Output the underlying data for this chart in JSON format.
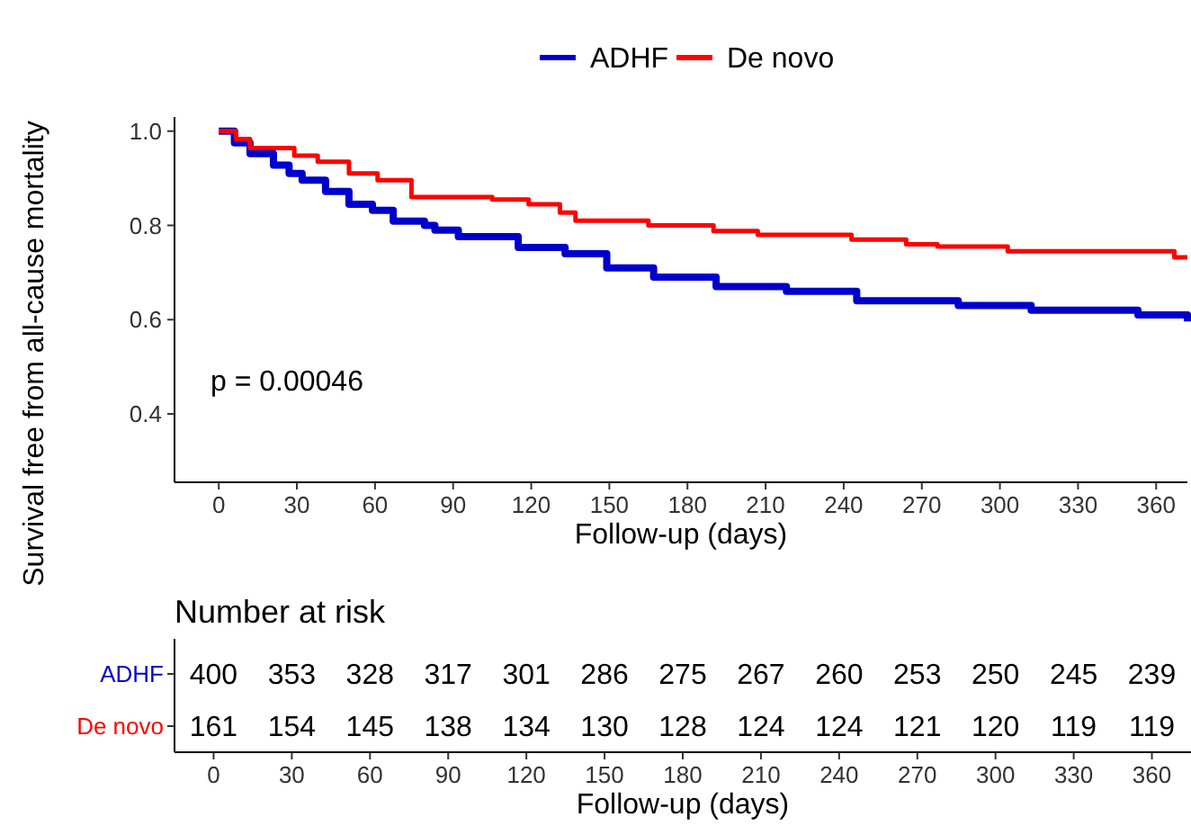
{
  "chart_data": [
    {
      "type": "step",
      "xlabel": "Follow-up (days)",
      "ylabel": "Survival free from all-cause mortality",
      "legend": "top",
      "annotations": [
        "p = 0.00046"
      ],
      "xlim": [
        -17,
        372
      ],
      "ylim": [
        0.255,
        1.03
      ],
      "xticks": [
        0,
        30,
        60,
        90,
        120,
        150,
        180,
        210,
        240,
        270,
        300,
        330,
        360
      ],
      "yticks": [
        0.4,
        0.6,
        0.8,
        {
          "value": 1,
          "label": "1.0"
        }
      ],
      "grid": false,
      "series": [
        {
          "name": "ADHF",
          "color": "#0000cc",
          "x": [
            0,
            6,
            12,
            21,
            27,
            32,
            41,
            50,
            59,
            67,
            79,
            83,
            92,
            115,
            133,
            149,
            167,
            191,
            218,
            245,
            284,
            312,
            353,
            372
          ],
          "values": [
            1,
            0.975,
            0.952,
            0.928,
            0.91,
            0.896,
            0.872,
            0.845,
            0.832,
            0.809,
            0.8,
            0.79,
            0.776,
            0.753,
            0.74,
            0.71,
            0.69,
            0.67,
            0.66,
            0.64,
            0.63,
            0.62,
            0.61,
            0.596
          ]
        },
        {
          "name": "De novo",
          "color": "#ff0000",
          "x": [
            0,
            6.6,
            12,
            29,
            38,
            50,
            61,
            74,
            105,
            119,
            131,
            137,
            165,
            190,
            207,
            243,
            264,
            276,
            303,
            367,
            372
          ],
          "values": [
            1,
            0.983,
            0.964,
            0.948,
            0.935,
            0.91,
            0.896,
            0.86,
            0.855,
            0.845,
            0.827,
            0.81,
            0.8,
            0.788,
            0.78,
            0.77,
            0.76,
            0.755,
            0.745,
            0.732,
            0.732
          ]
        }
      ]
    },
    {
      "type": "heatmap",
      "title": "Number at risk",
      "xlabel": "Follow-up (days)",
      "data_labels": true,
      "categories": [
        "0",
        "30",
        "60",
        "90",
        "120",
        "150",
        "180",
        "210",
        "240",
        "270",
        "300",
        "330",
        "360"
      ],
      "y_categories": [
        "ADHF",
        "De novo"
      ],
      "cells": [
        [
          400,
          353,
          328,
          317,
          301,
          286,
          275,
          267,
          260,
          253,
          250,
          245,
          239
        ],
        [
          161,
          154,
          145,
          138,
          134,
          130,
          128,
          124,
          124,
          121,
          120,
          119,
          119
        ]
      ]
    }
  ]
}
